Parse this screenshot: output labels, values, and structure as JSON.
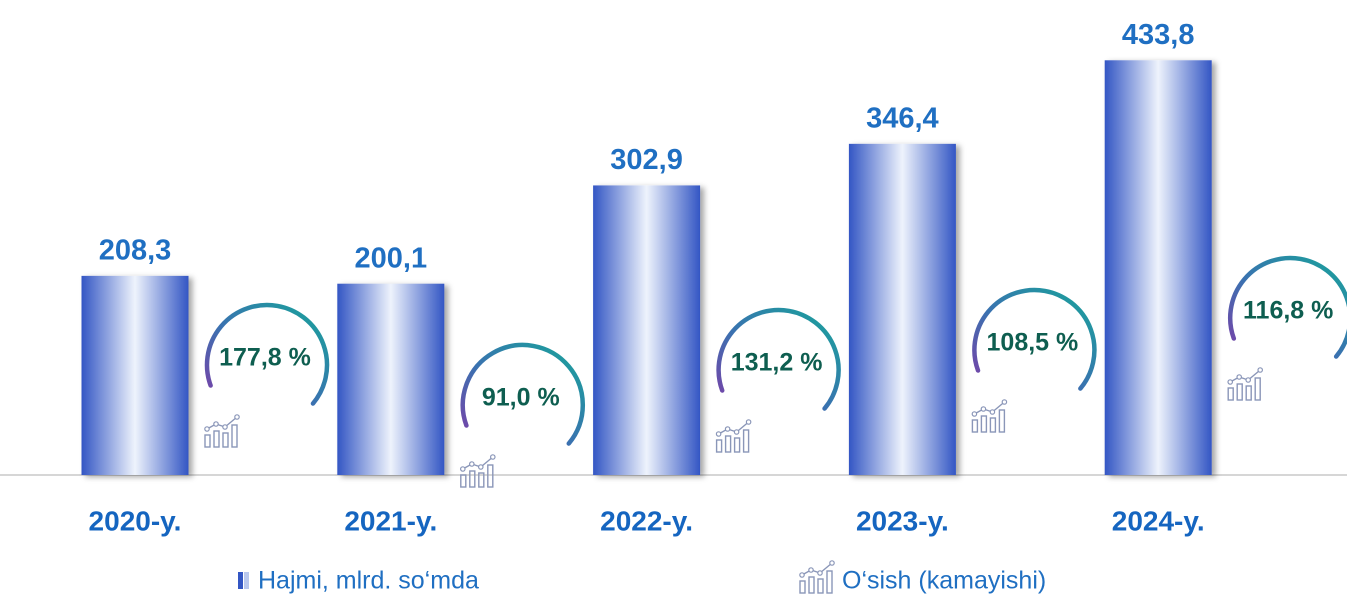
{
  "chart_data": {
    "type": "bar",
    "categories": [
      "2020-y.",
      "2021-y.",
      "2022-y.",
      "2023-y.",
      "2024-y."
    ],
    "series": [
      {
        "name": "Hajmi, mlrd. so‘mda",
        "color": "#3356c4",
        "values": [
          208.3,
          200.1,
          302.9,
          346.4,
          433.8
        ],
        "value_labels": [
          "208,3",
          "200,1",
          "302,9",
          "346,4",
          "433,8"
        ]
      },
      {
        "name": "O‘sish (kamayishi)",
        "color": "#17a59a",
        "values": [
          177.8,
          91.0,
          131.2,
          108.5,
          116.8
        ],
        "value_labels": [
          "177,8 %",
          "91,0 %",
          "131,2 %",
          "108,5 %",
          "116,8 %"
        ]
      }
    ]
  }
}
